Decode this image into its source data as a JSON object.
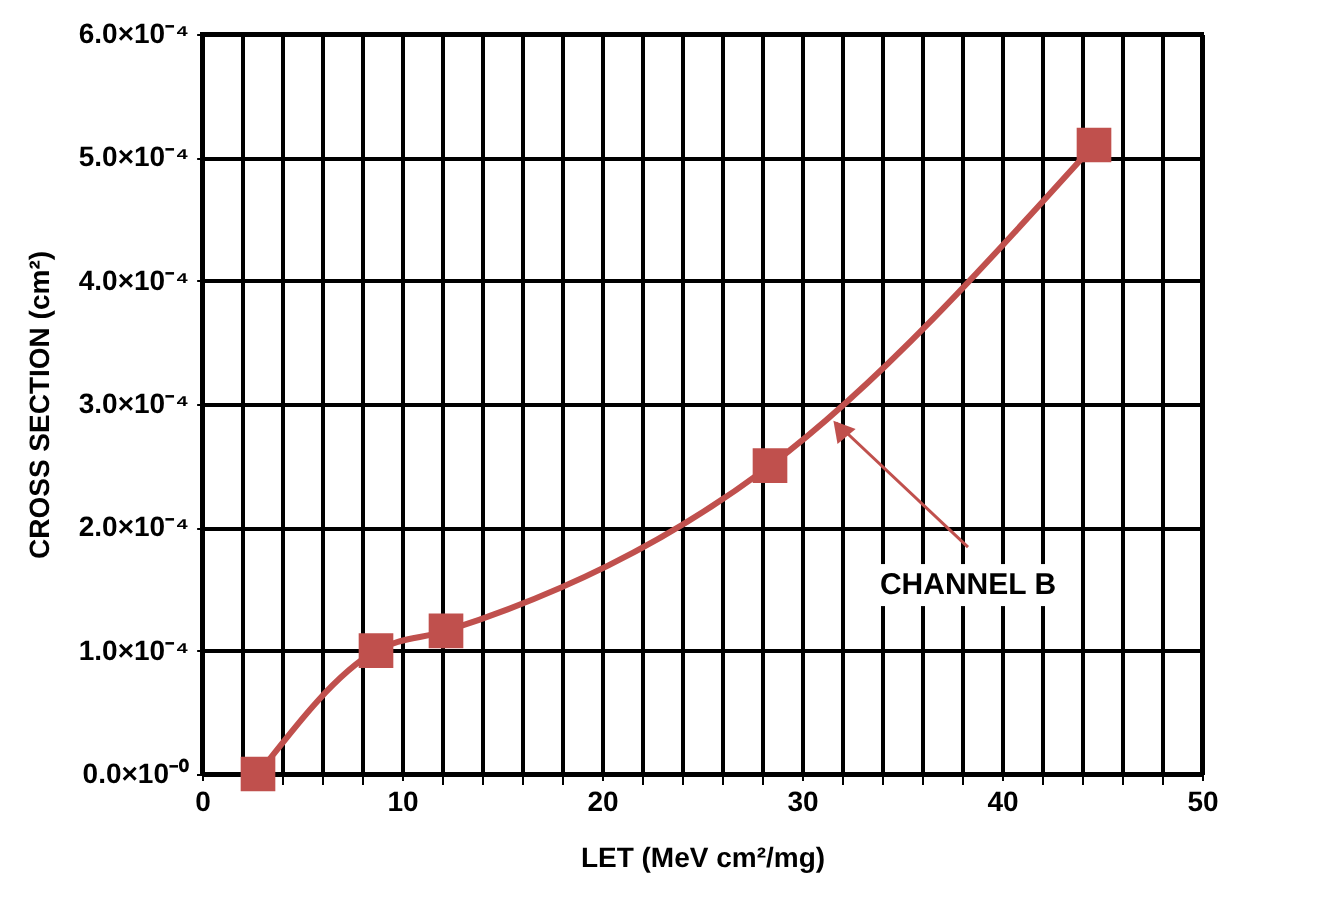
{
  "chart_data": {
    "type": "line",
    "xlabel": "LET (MeV cm²/mg)",
    "ylabel": "CROSS SECTION (cm²)",
    "x": [
      2.8,
      8.7,
      12.2,
      28.4,
      44.6
    ],
    "series": [
      {
        "color": "#c0504d",
        "values": [
          0,
          0.0001,
          0.000116,
          0.00025,
          0.00051
        ]
      }
    ],
    "xlim": [
      0,
      50
    ],
    "xticks": [
      0,
      {
        "value": 2,
        "label": null
      },
      {
        "value": 4,
        "label": null
      },
      {
        "value": 6,
        "label": null
      },
      {
        "value": 8,
        "label": null
      },
      10,
      {
        "value": 12,
        "label": null
      },
      {
        "value": 14,
        "label": null
      },
      {
        "value": 16,
        "label": null
      },
      {
        "value": 18,
        "label": null
      },
      20,
      {
        "value": 22,
        "label": null
      },
      {
        "value": 24,
        "label": null
      },
      {
        "value": 26,
        "label": null
      },
      {
        "value": 28,
        "label": null
      },
      30,
      {
        "value": 32,
        "label": null
      },
      {
        "value": 34,
        "label": null
      },
      {
        "value": 36,
        "label": null
      },
      {
        "value": 38,
        "label": null
      },
      40,
      {
        "value": 42,
        "label": null
      },
      {
        "value": 44,
        "label": null
      },
      {
        "value": 46,
        "label": null
      },
      {
        "value": 48,
        "label": null
      },
      50
    ],
    "ylim": [
      0,
      0.0006
    ],
    "yticks": [
      {
        "value": 0,
        "label": "0.0×10⁻⁰"
      },
      {
        "value": 0.0001,
        "label": "1.0×10⁻⁴"
      },
      {
        "value": 0.0002,
        "label": "2.0×10⁻⁴"
      },
      {
        "value": 0.0003,
        "label": "3.0×10⁻⁴"
      },
      {
        "value": 0.0004,
        "label": "4.0×10⁻⁴"
      },
      {
        "value": 0.0005,
        "label": "5.0×10⁻⁴"
      },
      {
        "value": 0.0006,
        "label": "6.0×10⁻⁴"
      }
    ],
    "annotations": [
      {
        "text": "CHANNEL B",
        "x": 31.3,
        "y": 0.000292
      }
    ],
    "grid": true,
    "marker": "square",
    "line_style": "solid"
  }
}
